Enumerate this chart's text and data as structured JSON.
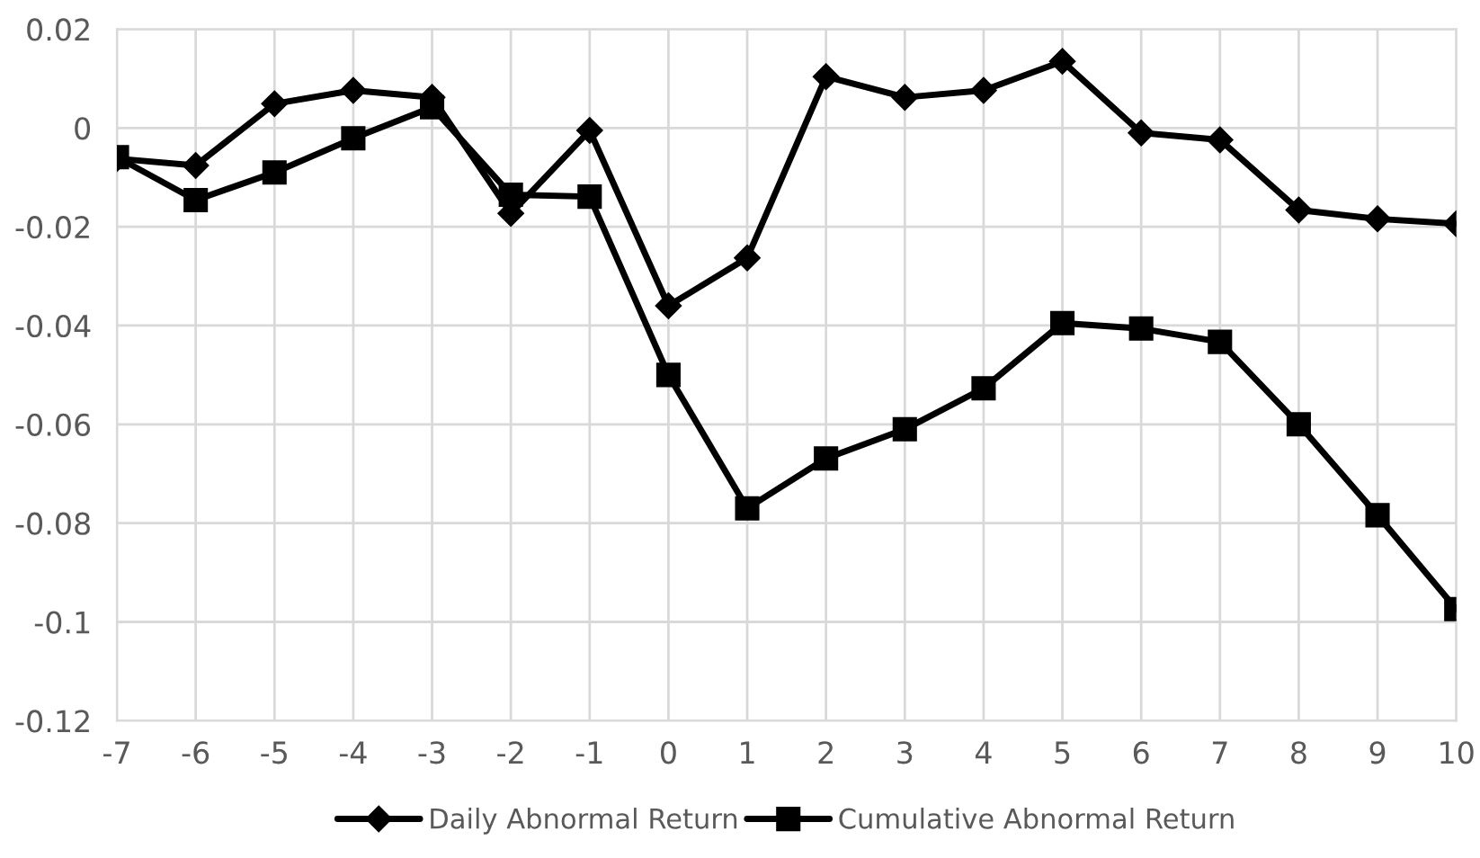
{
  "chart_data": {
    "type": "line",
    "categories": [
      "-7",
      "-6",
      "-5",
      "-4",
      "-3",
      "-2",
      "-1",
      "0",
      "1",
      "2",
      "3",
      "4",
      "5",
      "6",
      "7",
      "8",
      "9",
      "10"
    ],
    "series": [
      {
        "name": "Daily Abnormal Return",
        "color": "#000000",
        "marker": "diamond",
        "values": [
          -0.0062,
          -0.0076,
          0.0049,
          0.0076,
          0.0062,
          -0.0173,
          -0.0005,
          -0.036,
          -0.0263,
          0.0104,
          0.0062,
          0.0076,
          0.0135,
          -0.001,
          -0.0024,
          -0.0166,
          -0.0184,
          -0.0194
        ]
      },
      {
        "name": "Cumulative Abnormal Return",
        "color": "#000000",
        "marker": "square",
        "values": [
          -0.0059,
          -0.0146,
          -0.009,
          -0.0021,
          0.0042,
          -0.0135,
          -0.0139,
          -0.05,
          -0.077,
          -0.0669,
          -0.061,
          -0.0527,
          -0.0395,
          -0.0406,
          -0.0433,
          -0.06,
          -0.0784,
          -0.0974
        ]
      }
    ],
    "ylim": [
      -0.12,
      0.02
    ],
    "yticks": [
      {
        "value": -0.12,
        "label": "-0.12"
      },
      {
        "value": -0.1,
        "label": "-0.1"
      },
      {
        "value": -0.08,
        "label": "-0.08"
      },
      {
        "value": -0.06,
        "label": "-0.06"
      },
      {
        "value": -0.04,
        "label": "-0.04"
      },
      {
        "value": -0.02,
        "label": "-0.02"
      },
      {
        "value": 0,
        "label": "0"
      },
      {
        "value": 0.02,
        "label": "0.02"
      }
    ],
    "grid": true,
    "legend": "bottom",
    "line_style": "solid"
  }
}
